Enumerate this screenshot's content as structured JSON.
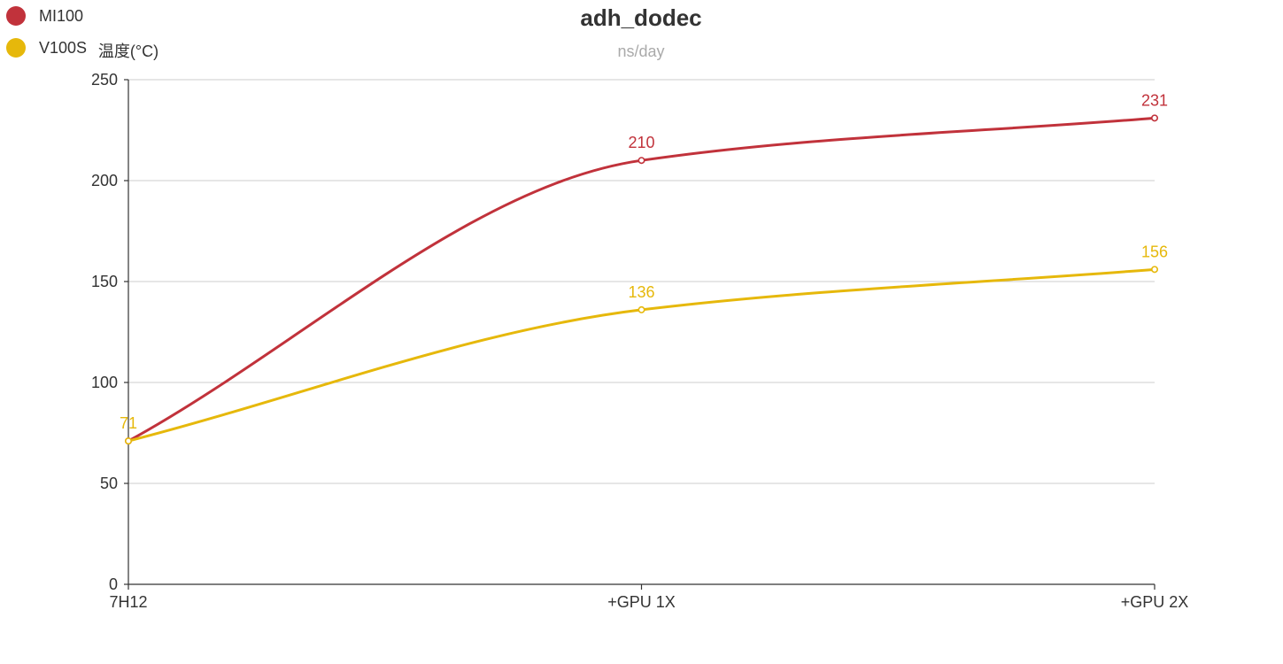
{
  "chart_data": {
    "type": "line",
    "title": "adh_dodec",
    "subtitle": "ns/day",
    "ylabel": "温度(°C)",
    "xlabel": "",
    "categories": [
      "7H12",
      "+GPU 1X",
      "+GPU 2X"
    ],
    "ylim": [
      0,
      250
    ],
    "yticks": [
      0,
      50,
      100,
      150,
      200,
      250
    ],
    "grid": true,
    "smooth": true,
    "legend_position": "top-left",
    "series": [
      {
        "name": "MI100",
        "color": "#c1323b",
        "values": [
          71,
          210,
          231
        ]
      },
      {
        "name": "V100S",
        "color": "#e6b80b",
        "values": [
          71,
          136,
          156
        ]
      }
    ]
  }
}
